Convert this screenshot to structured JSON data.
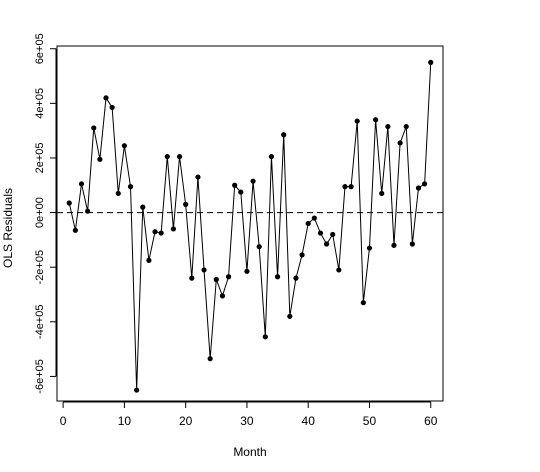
{
  "chart_data": {
    "type": "line",
    "title": "",
    "xlabel": "Month",
    "ylabel": "OLS Residuals",
    "xlim": [
      -1,
      62
    ],
    "ylim": [
      -690000,
      610000
    ],
    "x_ticks": [
      0,
      10,
      20,
      30,
      40,
      50,
      60
    ],
    "x_tick_labels": [
      "0",
      "10",
      "20",
      "30",
      "40",
      "50",
      "60"
    ],
    "y_ticks": [
      -600000,
      -400000,
      -200000,
      0,
      200000,
      400000,
      600000
    ],
    "y_tick_labels": [
      "-6e+05",
      "-4e+05",
      "-2e+05",
      "0e+00",
      "2e+05",
      "4e+05",
      "6e+05"
    ],
    "reference_line": {
      "y": 0,
      "style": "dashed"
    },
    "grid": false,
    "series": [
      {
        "x": [
          1,
          2,
          3,
          4,
          5,
          6,
          7,
          8,
          9,
          10,
          11,
          12,
          13,
          14,
          15,
          16,
          17,
          18,
          19,
          20,
          21,
          22,
          23,
          24,
          25,
          26,
          27,
          28,
          29,
          30,
          31,
          32,
          33,
          34,
          35,
          36,
          37,
          38,
          39,
          40,
          41,
          42,
          43,
          44,
          45,
          46,
          47,
          48,
          49,
          50,
          51,
          52,
          53,
          54,
          55,
          56,
          57,
          58,
          59,
          60
        ],
        "values": [
          35000,
          -65000,
          105000,
          5000,
          310000,
          195000,
          420000,
          385000,
          70000,
          245000,
          95000,
          -650000,
          20000,
          -175000,
          -70000,
          -75000,
          205000,
          -60000,
          205000,
          30000,
          -240000,
          130000,
          -210000,
          -535000,
          -245000,
          -305000,
          -235000,
          100000,
          75000,
          -215000,
          115000,
          -125000,
          -455000,
          205000,
          -235000,
          285000,
          -380000,
          -240000,
          -155000,
          -40000,
          -20000,
          -75000,
          -115000,
          -80000,
          -210000,
          95000,
          95000,
          335000,
          -330000,
          -130000,
          340000,
          70000,
          315000,
          -120000,
          255000,
          315000,
          -115000,
          90000,
          105000,
          550000
        ]
      }
    ],
    "colors": {
      "line": "#000000",
      "point": "#000000",
      "axis": "#000000",
      "background": "#ffffff"
    }
  }
}
